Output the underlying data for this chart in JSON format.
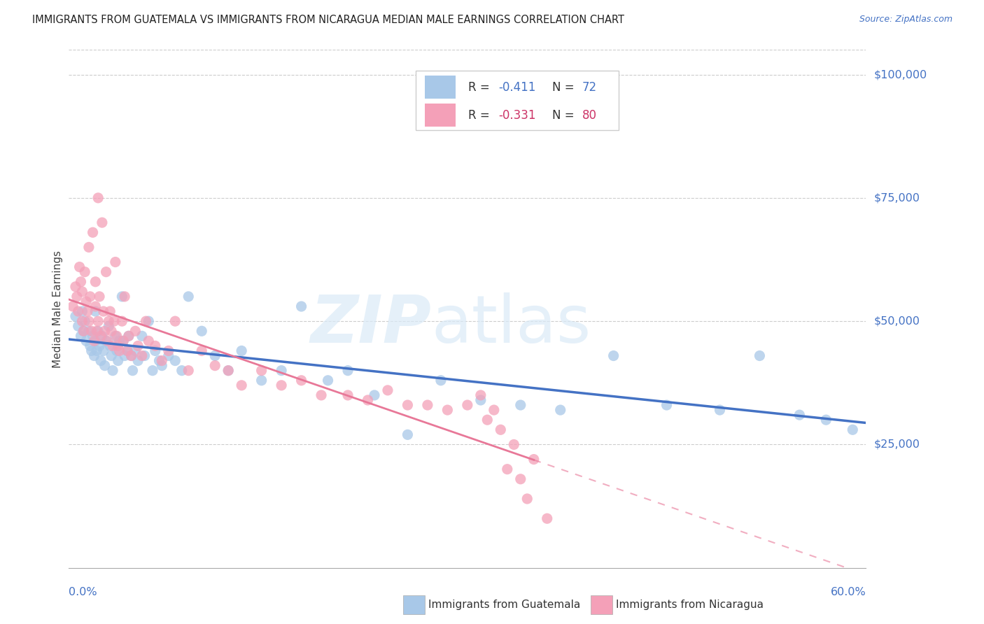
{
  "title": "IMMIGRANTS FROM GUATEMALA VS IMMIGRANTS FROM NICARAGUA MEDIAN MALE EARNINGS CORRELATION CHART",
  "source": "Source: ZipAtlas.com",
  "ylabel": "Median Male Earnings",
  "y_tick_labels": [
    "$25,000",
    "$50,000",
    "$75,000",
    "$100,000"
  ],
  "y_tick_values": [
    25000,
    50000,
    75000,
    100000
  ],
  "xlim": [
    0.0,
    0.6
  ],
  "ylim": [
    0,
    105000
  ],
  "legend_r1": "-0.411",
  "legend_n1": "72",
  "legend_r2": "-0.331",
  "legend_n2": "80",
  "color_guatemala": "#a8c8e8",
  "color_nicaragua": "#f4a0b8",
  "color_blue_line": "#4472c4",
  "color_pink_line": "#e87898",
  "color_blue_text": "#4472c4",
  "color_pink_text": "#cc3366",
  "color_title": "#222222",
  "background_color": "#ffffff",
  "guatemala_x": [
    0.005,
    0.007,
    0.009,
    0.01,
    0.011,
    0.012,
    0.013,
    0.015,
    0.016,
    0.017,
    0.018,
    0.019,
    0.02,
    0.02,
    0.021,
    0.022,
    0.023,
    0.024,
    0.025,
    0.026,
    0.027,
    0.028,
    0.03,
    0.031,
    0.032,
    0.033,
    0.035,
    0.036,
    0.037,
    0.038,
    0.04,
    0.041,
    0.042,
    0.044,
    0.045,
    0.047,
    0.048,
    0.05,
    0.052,
    0.055,
    0.057,
    0.06,
    0.063,
    0.065,
    0.068,
    0.07,
    0.075,
    0.08,
    0.085,
    0.09,
    0.1,
    0.11,
    0.12,
    0.13,
    0.145,
    0.16,
    0.175,
    0.195,
    0.21,
    0.23,
    0.255,
    0.28,
    0.31,
    0.34,
    0.37,
    0.41,
    0.45,
    0.49,
    0.52,
    0.55,
    0.57,
    0.59
  ],
  "guatemala_y": [
    51000,
    49000,
    47000,
    52000,
    48000,
    50000,
    46000,
    48000,
    45000,
    44000,
    47000,
    43000,
    52000,
    46000,
    44000,
    48000,
    45000,
    42000,
    47000,
    44000,
    41000,
    46000,
    49000,
    45000,
    43000,
    40000,
    47000,
    44000,
    42000,
    46000,
    55000,
    46000,
    43000,
    44000,
    47000,
    43000,
    40000,
    44000,
    42000,
    47000,
    43000,
    50000,
    40000,
    44000,
    42000,
    41000,
    43000,
    42000,
    40000,
    55000,
    48000,
    43000,
    40000,
    44000,
    38000,
    40000,
    53000,
    38000,
    40000,
    35000,
    27000,
    38000,
    34000,
    33000,
    32000,
    43000,
    33000,
    32000,
    43000,
    31000,
    30000,
    28000
  ],
  "nicaragua_x": [
    0.003,
    0.005,
    0.006,
    0.007,
    0.008,
    0.009,
    0.01,
    0.01,
    0.011,
    0.012,
    0.013,
    0.014,
    0.015,
    0.015,
    0.016,
    0.017,
    0.018,
    0.019,
    0.02,
    0.02,
    0.021,
    0.022,
    0.022,
    0.023,
    0.024,
    0.025,
    0.026,
    0.027,
    0.028,
    0.029,
    0.03,
    0.031,
    0.032,
    0.033,
    0.034,
    0.035,
    0.036,
    0.037,
    0.038,
    0.04,
    0.041,
    0.042,
    0.044,
    0.045,
    0.047,
    0.05,
    0.052,
    0.055,
    0.058,
    0.06,
    0.065,
    0.07,
    0.075,
    0.08,
    0.09,
    0.1,
    0.11,
    0.12,
    0.13,
    0.145,
    0.16,
    0.175,
    0.19,
    0.21,
    0.225,
    0.24,
    0.255,
    0.27,
    0.285,
    0.3,
    0.31,
    0.315,
    0.32,
    0.325,
    0.33,
    0.335,
    0.34,
    0.345,
    0.35,
    0.36
  ],
  "nicaragua_y": [
    53000,
    57000,
    55000,
    52000,
    61000,
    58000,
    50000,
    56000,
    48000,
    60000,
    54000,
    52000,
    65000,
    50000,
    55000,
    48000,
    68000,
    46000,
    53000,
    58000,
    48000,
    75000,
    50000,
    55000,
    47000,
    70000,
    52000,
    48000,
    60000,
    46000,
    50000,
    52000,
    48000,
    45000,
    50000,
    62000,
    47000,
    45000,
    44000,
    50000,
    46000,
    55000,
    44000,
    47000,
    43000,
    48000,
    45000,
    43000,
    50000,
    46000,
    45000,
    42000,
    44000,
    50000,
    40000,
    44000,
    41000,
    40000,
    37000,
    40000,
    37000,
    38000,
    35000,
    35000,
    34000,
    36000,
    33000,
    33000,
    32000,
    33000,
    35000,
    30000,
    32000,
    28000,
    20000,
    25000,
    18000,
    14000,
    22000,
    10000
  ]
}
